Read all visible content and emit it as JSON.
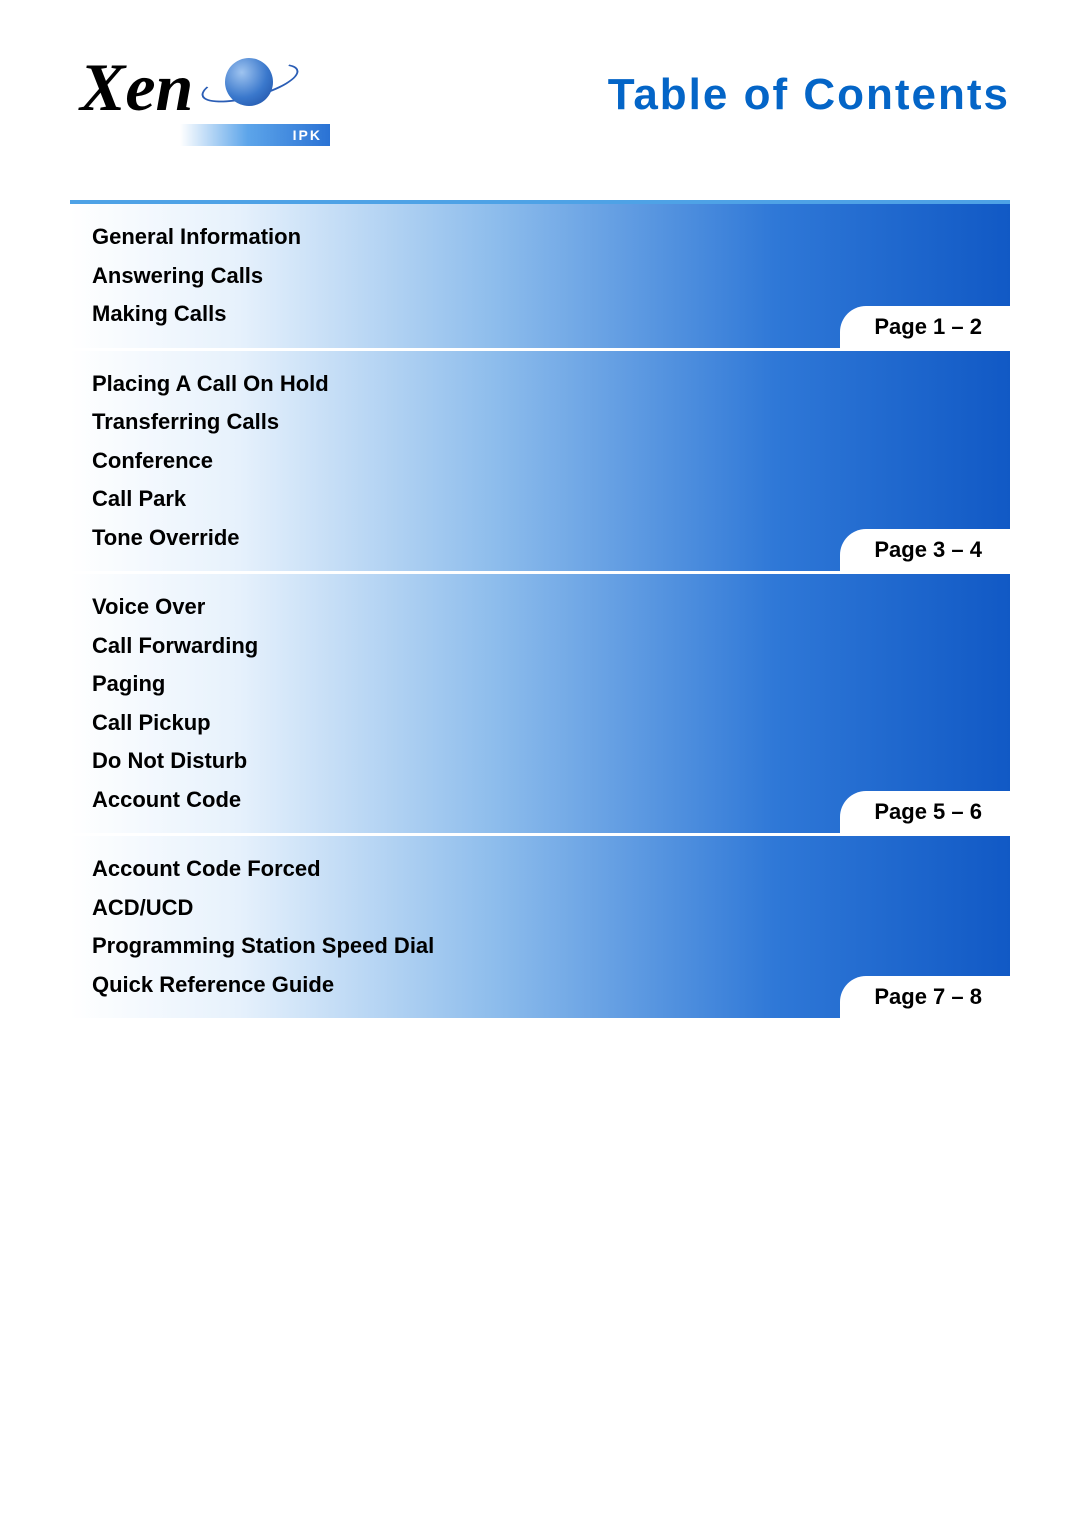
{
  "logo": {
    "text": "Xen",
    "sublabel": "IPK"
  },
  "title": "Table of Contents",
  "colors": {
    "title_color": "#0465c7",
    "gradient_start": "#ffffff",
    "gradient_mid1": "#e6f1fc",
    "gradient_mid2": "#8ebdec",
    "gradient_mid3": "#2f78d7",
    "gradient_end": "#1159c5",
    "accent_bar": "#4ea2e6",
    "tab_bg": "#ffffff",
    "text_color": "#000000"
  },
  "typography": {
    "title_fontsize": 44,
    "topic_fontsize": 22,
    "tab_fontsize": 22,
    "font_weight": "bold"
  },
  "sections": [
    {
      "topics": [
        "General Information",
        "Answering Calls",
        "Making Calls"
      ],
      "page_label": "Page 1 – 2"
    },
    {
      "topics": [
        "Placing A Call On Hold",
        "Transferring Calls",
        "Conference",
        "Call Park",
        "Tone Override"
      ],
      "page_label": "Page 3 – 4"
    },
    {
      "topics": [
        "Voice Over",
        "Call Forwarding",
        "Paging",
        "Call Pickup",
        "Do Not Disturb",
        "Account Code"
      ],
      "page_label": "Page 5 – 6"
    },
    {
      "topics": [
        "Account Code Forced",
        "ACD/UCD",
        "Programming Station Speed Dial",
        "Quick Reference Guide"
      ],
      "page_label": "Page 7 – 8"
    }
  ]
}
